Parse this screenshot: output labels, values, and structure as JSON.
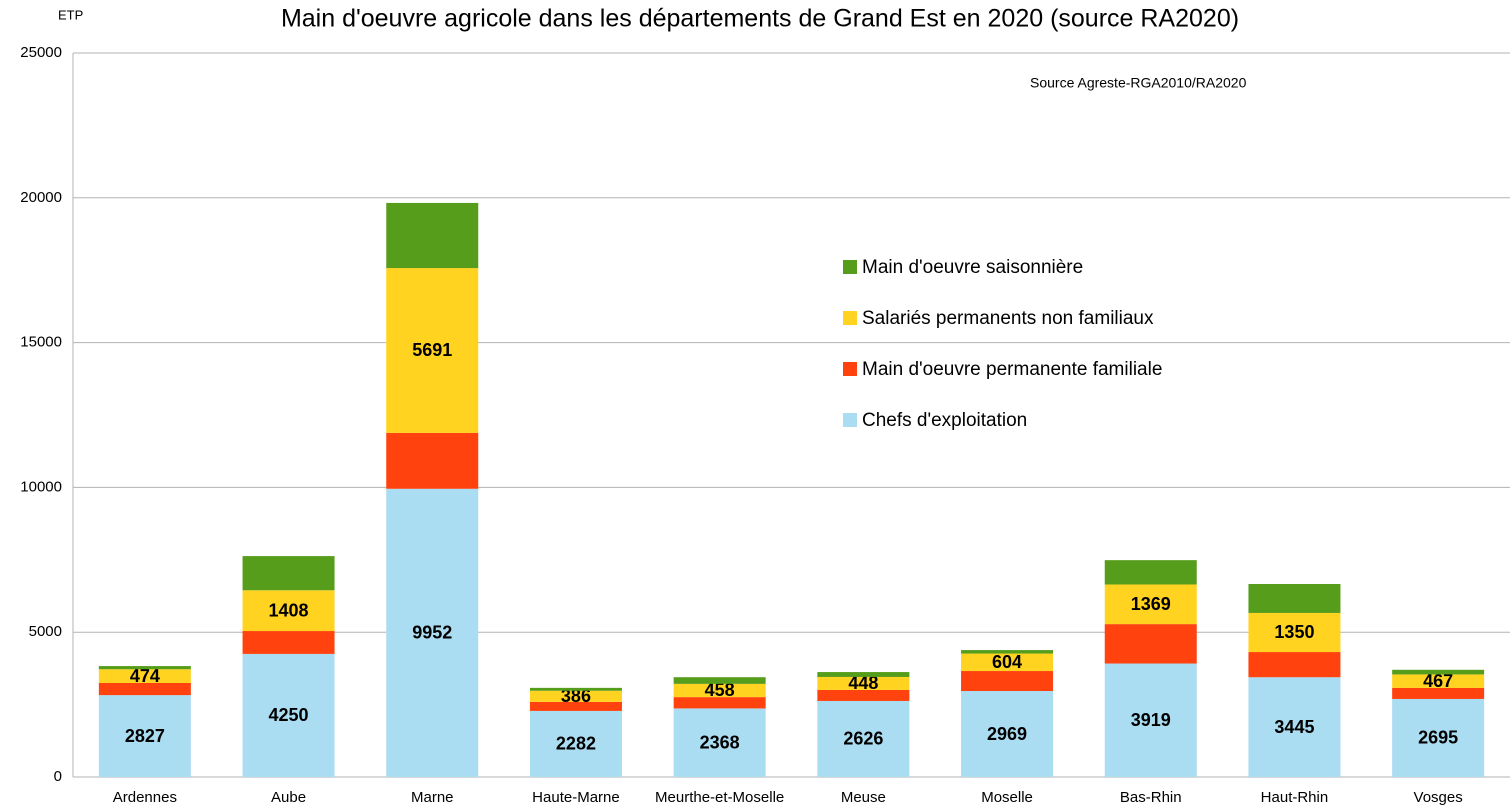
{
  "chart_data": {
    "type": "stacked-bar",
    "title": "Main d'oeuvre agricole dans les départements de Grand Est en 2020 (source RA2020)",
    "y_label": "ETP",
    "annotation": "Source Agreste-RGA2010/RA2020",
    "categories": [
      "Ardennes",
      "Aube",
      "Marne",
      "Haute-Marne",
      "Meurthe-et-Moselle",
      "Meuse",
      "Moselle",
      "Bas-Rhin",
      "Haut-Rhin",
      "Vosges"
    ],
    "series": [
      {
        "name": "Chefs d'exploitation",
        "color": "#aadcf2",
        "labels": true,
        "values": [
          2827,
          4250,
          9952,
          2282,
          2368,
          2626,
          2969,
          3919,
          3445,
          2695
        ]
      },
      {
        "name": "Main d'oeuvre permanente familiale",
        "color": "#ff420e",
        "labels": false,
        "values": [
          420,
          790,
          1930,
          310,
          390,
          380,
          690,
          1360,
          870,
          380
        ]
      },
      {
        "name": "Salariés permanents non familiaux",
        "color": "#ffd320",
        "labels": true,
        "values": [
          474,
          1408,
          5691,
          386,
          458,
          448,
          604,
          1369,
          1350,
          467
        ]
      },
      {
        "name": "Main d'oeuvre saisonnière",
        "color": "#579d1c",
        "labels": false,
        "values": [
          110,
          1180,
          2250,
          100,
          230,
          170,
          120,
          840,
          1000,
          160
        ]
      }
    ],
    "ylim": [
      0,
      25000
    ],
    "yticks": [
      0,
      5000,
      10000,
      15000,
      20000,
      25000
    ],
    "grid": true,
    "legend": "right"
  }
}
